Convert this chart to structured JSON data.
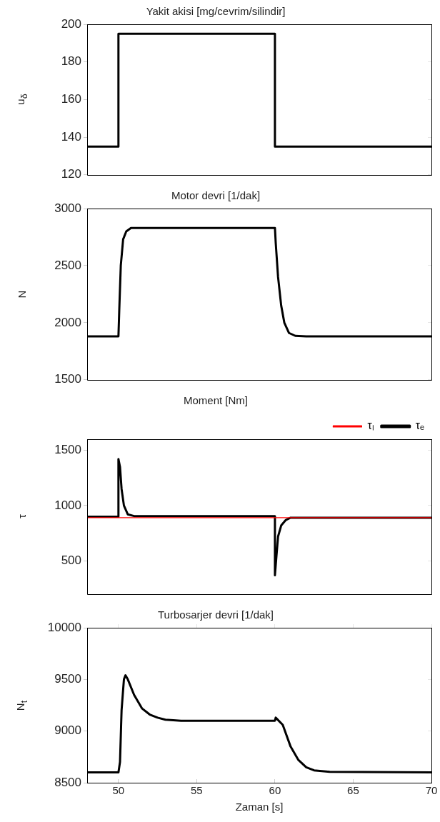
{
  "chart_data": [
    {
      "type": "line",
      "title": "Yakit akisi [mg/cevrim/silindir]",
      "ylabel": "u$_{δ}$",
      "xlim": [
        48,
        70
      ],
      "xticks": [
        50,
        55,
        60,
        65,
        70
      ],
      "ylim": [
        120,
        200
      ],
      "yticks": [
        120,
        140,
        160,
        180,
        200
      ],
      "tick_labels": "y",
      "grid": false,
      "legend": false,
      "marker": "none",
      "line_style": "solid",
      "series": [
        {
          "color": "#000000",
          "x": [
            48,
            50,
            50,
            60,
            60,
            70
          ],
          "values": [
            135,
            135,
            195,
            195,
            135,
            135
          ]
        }
      ]
    },
    {
      "type": "line",
      "title": "Motor devri [1/dak]",
      "ylabel": "N",
      "xlim": [
        48,
        70
      ],
      "xticks": [
        50,
        55,
        60,
        65,
        70
      ],
      "ylim": [
        1500,
        3000
      ],
      "yticks": [
        1500,
        2000,
        2500,
        3000
      ],
      "tick_labels": "y",
      "grid": false,
      "legend": false,
      "marker": "none",
      "line_style": "solid",
      "series": [
        {
          "color": "#000000",
          "x": [
            48,
            50,
            50.05,
            50.15,
            50.3,
            50.5,
            50.8,
            60,
            60.05,
            60.2,
            60.4,
            60.6,
            60.9,
            61.3,
            62,
            70
          ],
          "values": [
            1880,
            1880,
            2100,
            2500,
            2730,
            2800,
            2830,
            2830,
            2700,
            2400,
            2150,
            2000,
            1910,
            1885,
            1880,
            1880
          ]
        }
      ]
    },
    {
      "type": "line",
      "title": "Moment [Nm]",
      "ylabel": "τ",
      "xlim": [
        48,
        70
      ],
      "xticks": [
        50,
        55,
        60,
        65,
        70
      ],
      "ylim": [
        200,
        1600
      ],
      "yticks": [
        500,
        1000,
        1500
      ],
      "tick_labels": "y",
      "grid": false,
      "legend": "top right",
      "marker": "none",
      "line_style": "solid",
      "series": [
        {
          "name": "τₑ",
          "color": "#000000",
          "x": [
            48,
            50,
            50,
            50.1,
            50.2,
            50.35,
            50.6,
            51,
            60,
            60,
            60.1,
            60.2,
            60.4,
            60.7,
            61,
            70
          ],
          "values": [
            900,
            900,
            1420,
            1350,
            1150,
            1000,
            920,
            905,
            905,
            370,
            550,
            720,
            820,
            870,
            890,
            890
          ]
        },
        {
          "name": "τₗ",
          "color": "#ff0000",
          "x": [
            48,
            70
          ],
          "values": [
            890,
            890
          ]
        }
      ]
    },
    {
      "type": "line",
      "title": "Turbosarjer devri [1/dak]",
      "xlabel": "Zaman [s]",
      "ylabel": "N$_{t}$",
      "xlim": [
        48,
        70
      ],
      "xticks": [
        50,
        55,
        60,
        65,
        70
      ],
      "ylim": [
        8500,
        10000
      ],
      "yticks": [
        8500,
        9000,
        9500,
        10000
      ],
      "grid": false,
      "legend": false,
      "marker": "none",
      "line_style": "solid",
      "series": [
        {
          "color": "#000000",
          "x": [
            48,
            50,
            50.1,
            50.2,
            50.35,
            50.45,
            50.6,
            51,
            51.5,
            52,
            52.5,
            53,
            54,
            60,
            60.05,
            60.5,
            61,
            61.5,
            62,
            62.5,
            63.5,
            70
          ],
          "values": [
            8600,
            8600,
            8700,
            9200,
            9500,
            9540,
            9500,
            9350,
            9220,
            9160,
            9130,
            9110,
            9100,
            9100,
            9130,
            9060,
            8850,
            8720,
            8650,
            8620,
            8605,
            8600
          ]
        }
      ]
    }
  ]
}
